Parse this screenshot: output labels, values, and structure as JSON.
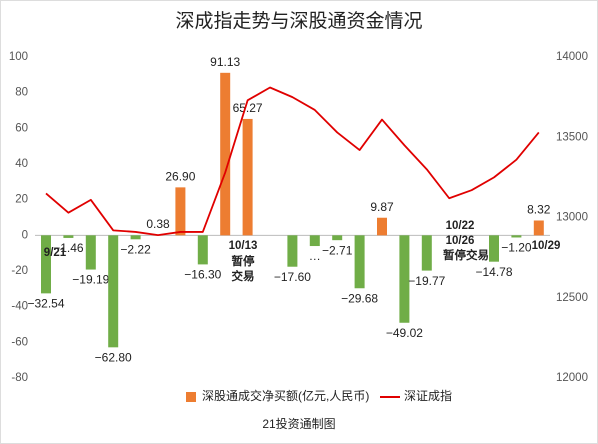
{
  "chart_data": {
    "type": "bar_line",
    "title": "深成指走势与深股通资金情况",
    "footer": "21投资通制图",
    "series": [
      {
        "name": "深股通成交净买额(亿元,人民币)",
        "type": "bar",
        "color": "#ed7d31",
        "negative_color": "#70ad47",
        "values": [
          -32.54,
          -1.46,
          -19.19,
          -62.8,
          -2.22,
          0.38,
          26.9,
          -16.3,
          91.13,
          65.27,
          null,
          -17.6,
          -6,
          -2.71,
          -29.68,
          9.87,
          -49.02,
          -19.77,
          null,
          null,
          -14.78,
          -1.2,
          8.32
        ],
        "value_labels": [
          "−32.54",
          "−1.46",
          "−19.19",
          "−62.80",
          "−2.22",
          "0.38",
          "26.90",
          "−16.30",
          "91.13",
          "65.27",
          null,
          "−17.60",
          "…",
          "−2.71",
          "−29.68",
          "9.87",
          "−49.02",
          "−19.77",
          null,
          null,
          "−14.78",
          "−1.20",
          "8.32"
        ]
      },
      {
        "name": "深证成指",
        "type": "line",
        "axis": "y2",
        "color": "#e00000",
        "values": [
          13150,
          13030,
          13110,
          12920,
          12910,
          12890,
          12910,
          12910,
          13280,
          13730,
          13810,
          13750,
          13670,
          13530,
          13420,
          13610,
          13450,
          13300,
          13120,
          13170,
          13250,
          13360,
          13530
        ]
      }
    ],
    "annotations": [
      "9/21",
      "10/13",
      "暂停",
      "交易",
      "10/22",
      "10/26",
      "暂停交易",
      "10/29"
    ],
    "ylim": [
      -80,
      100
    ],
    "yticks": [
      -80,
      -60,
      -40,
      -20,
      0,
      20,
      40,
      60,
      80,
      100
    ],
    "y2lim": [
      12000,
      14000
    ],
    "y2ticks": [
      12000,
      12500,
      13000,
      13500,
      14000
    ],
    "legend": "bottom"
  }
}
